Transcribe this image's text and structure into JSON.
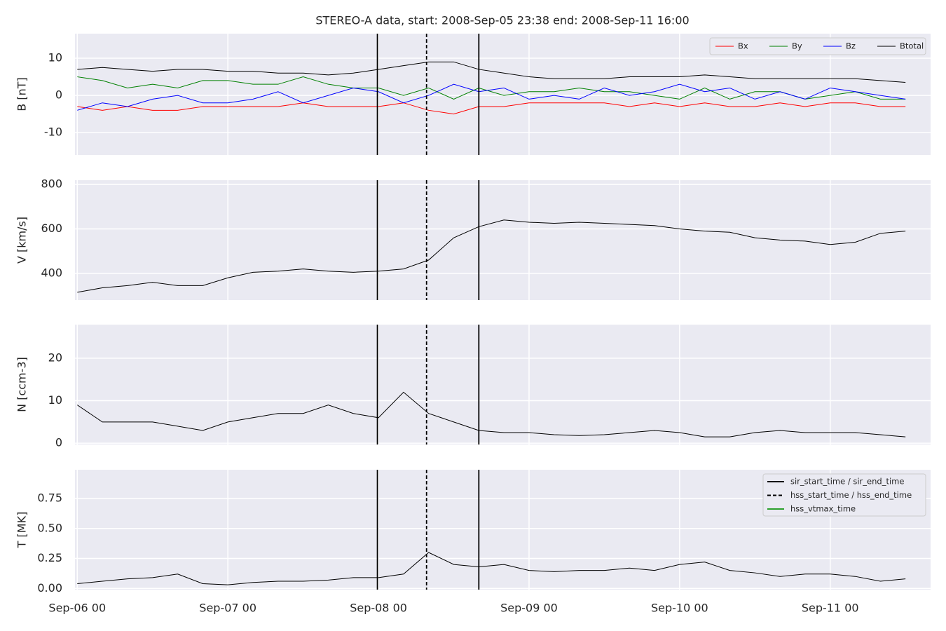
{
  "chart_data": {
    "type": "line",
    "title": "STEREO-A data, start: 2008-Sep-05 23:38  end: 2008-Sep-11 16:00",
    "x": [
      "2008-09-06 00:00",
      "2008-09-06 04:00",
      "2008-09-06 08:00",
      "2008-09-06 12:00",
      "2008-09-06 16:00",
      "2008-09-06 20:00",
      "2008-09-07 00:00",
      "2008-09-07 04:00",
      "2008-09-07 08:00",
      "2008-09-07 12:00",
      "2008-09-07 16:00",
      "2008-09-07 20:00",
      "2008-09-08 00:00",
      "2008-09-08 04:00",
      "2008-09-08 08:00",
      "2008-09-08 12:00",
      "2008-09-08 16:00",
      "2008-09-08 20:00",
      "2008-09-09 00:00",
      "2008-09-09 04:00",
      "2008-09-09 08:00",
      "2008-09-09 12:00",
      "2008-09-09 16:00",
      "2008-09-09 20:00",
      "2008-09-10 00:00",
      "2008-09-10 04:00",
      "2008-09-10 08:00",
      "2008-09-10 12:00",
      "2008-09-10 16:00",
      "2008-09-10 20:00",
      "2008-09-11 00:00",
      "2008-09-11 04:00",
      "2008-09-11 08:00",
      "2008-09-11 12:00"
    ],
    "xlim": [
      "2008-09-05 23:38",
      "2008-09-11 16:00"
    ],
    "xticks": [
      {
        "value": "2008-09-06 00:00",
        "label": "Sep-06 00"
      },
      {
        "value": "2008-09-07 00:00",
        "label": "Sep-07 00"
      },
      {
        "value": "2008-09-08 00:00",
        "label": "Sep-08 00"
      },
      {
        "value": "2008-09-09 00:00",
        "label": "Sep-09 00"
      },
      {
        "value": "2008-09-10 00:00",
        "label": "Sep-10 00"
      },
      {
        "value": "2008-09-11 00:00",
        "label": "Sep-11 00"
      }
    ],
    "grid": true,
    "events": [
      {
        "name": "sir_start_time / sir_end_time",
        "color": "#000000",
        "dash": false,
        "times": [
          "2008-09-07 23:50",
          "2008-09-08 16:00"
        ]
      },
      {
        "name": "hss_start_time / hss_end_time",
        "color": "#000000",
        "dash": true,
        "times": [
          "2008-09-08 07:40"
        ]
      },
      {
        "name": "hss_vtmax_time",
        "color": "#2ca02c",
        "dash": false,
        "times": []
      }
    ],
    "panels": [
      {
        "ylabel": "B [nT]",
        "ylim": [
          -16,
          16.6
        ],
        "yticks": [
          -10,
          0,
          10
        ],
        "legend": "upper right",
        "series": [
          {
            "name": "Bx",
            "color": "#ff0000",
            "values": [
              -3,
              -4,
              -3,
              -4,
              -4,
              -3,
              -3,
              -3,
              -3,
              -2,
              -3,
              -3,
              -3,
              -2,
              -4,
              -5,
              -3,
              -3,
              -2,
              -2,
              -2,
              -2,
              -3,
              -2,
              -3,
              -2,
              -3,
              -3,
              -2,
              -3,
              -2,
              -2,
              -3,
              -3
            ]
          },
          {
            "name": "By",
            "color": "#008000",
            "values": [
              5,
              4,
              2,
              3,
              2,
              4,
              4,
              3,
              3,
              5,
              3,
              2,
              2,
              0,
              2,
              -1,
              2,
              0,
              1,
              1,
              2,
              1,
              1,
              0,
              -1,
              2,
              -1,
              1,
              1,
              -1,
              0,
              1,
              -1,
              -1
            ]
          },
          {
            "name": "Bz",
            "color": "#0000ff",
            "values": [
              -4,
              -2,
              -3,
              -1,
              0,
              -2,
              -2,
              -1,
              1,
              -2,
              0,
              2,
              1,
              -2,
              0,
              3,
              1,
              2,
              -1,
              0,
              -1,
              2,
              0,
              1,
              3,
              1,
              2,
              -1,
              1,
              -1,
              2,
              1,
              0,
              -1
            ]
          },
          {
            "name": "Btotal",
            "color": "#000000",
            "values": [
              7,
              7.5,
              7,
              6.5,
              7,
              7,
              6.5,
              6.5,
              6,
              6,
              5.5,
              6,
              7,
              8,
              9,
              9,
              7,
              6,
              5,
              4.5,
              4.5,
              4.5,
              5,
              5,
              5,
              5.5,
              5,
              4.5,
              4.5,
              4.5,
              4.5,
              4.5,
              4,
              3.5
            ]
          }
        ]
      },
      {
        "ylabel": "V [km/s]",
        "ylim": [
          280,
          819
        ],
        "yticks": [
          400,
          600,
          800
        ],
        "series": [
          {
            "color": "#000000",
            "values": [
              315,
              335,
              345,
              360,
              345,
              345,
              380,
              405,
              410,
              420,
              410,
              405,
              410,
              420,
              460,
              560,
              610,
              640,
              630,
              625,
              630,
              625,
              620,
              615,
              600,
              590,
              585,
              560,
              550,
              545,
              530,
              540,
              580,
              590
            ]
          }
        ]
      },
      {
        "ylabel": "N [ccm-3]",
        "ylim": [
          -0.3,
          27.9
        ],
        "yticks": [
          0,
          10,
          20
        ],
        "series": [
          {
            "color": "#000000",
            "values": [
              9,
              5,
              5,
              5,
              4,
              3,
              5,
              6,
              7,
              7,
              9,
              7,
              6,
              12,
              7,
              5,
              3,
              2.5,
              2.5,
              2,
              1.8,
              2,
              2.5,
              3,
              2.5,
              1.5,
              1.5,
              2.5,
              3,
              2.5,
              2.5,
              2.5,
              2,
              1.5
            ]
          }
        ]
      },
      {
        "ylabel": "T [MK]",
        "ylim": [
          -0.01,
          0.99
        ],
        "yticks": [
          {
            "value": 0,
            "label": "0.00"
          },
          {
            "value": 0.25,
            "label": "0.25"
          },
          {
            "value": 0.5,
            "label": "0.50"
          },
          {
            "value": 0.75,
            "label": "0.75"
          }
        ],
        "series": [
          {
            "color": "#000000",
            "values": [
              0.04,
              0.06,
              0.08,
              0.09,
              0.12,
              0.04,
              0.03,
              0.05,
              0.06,
              0.06,
              0.07,
              0.09,
              0.09,
              0.12,
              0.3,
              0.2,
              0.18,
              0.2,
              0.15,
              0.14,
              0.15,
              0.15,
              0.17,
              0.15,
              0.2,
              0.22,
              0.15,
              0.13,
              0.1,
              0.12,
              0.12,
              0.1,
              0.06,
              0.08
            ]
          }
        ]
      }
    ]
  }
}
